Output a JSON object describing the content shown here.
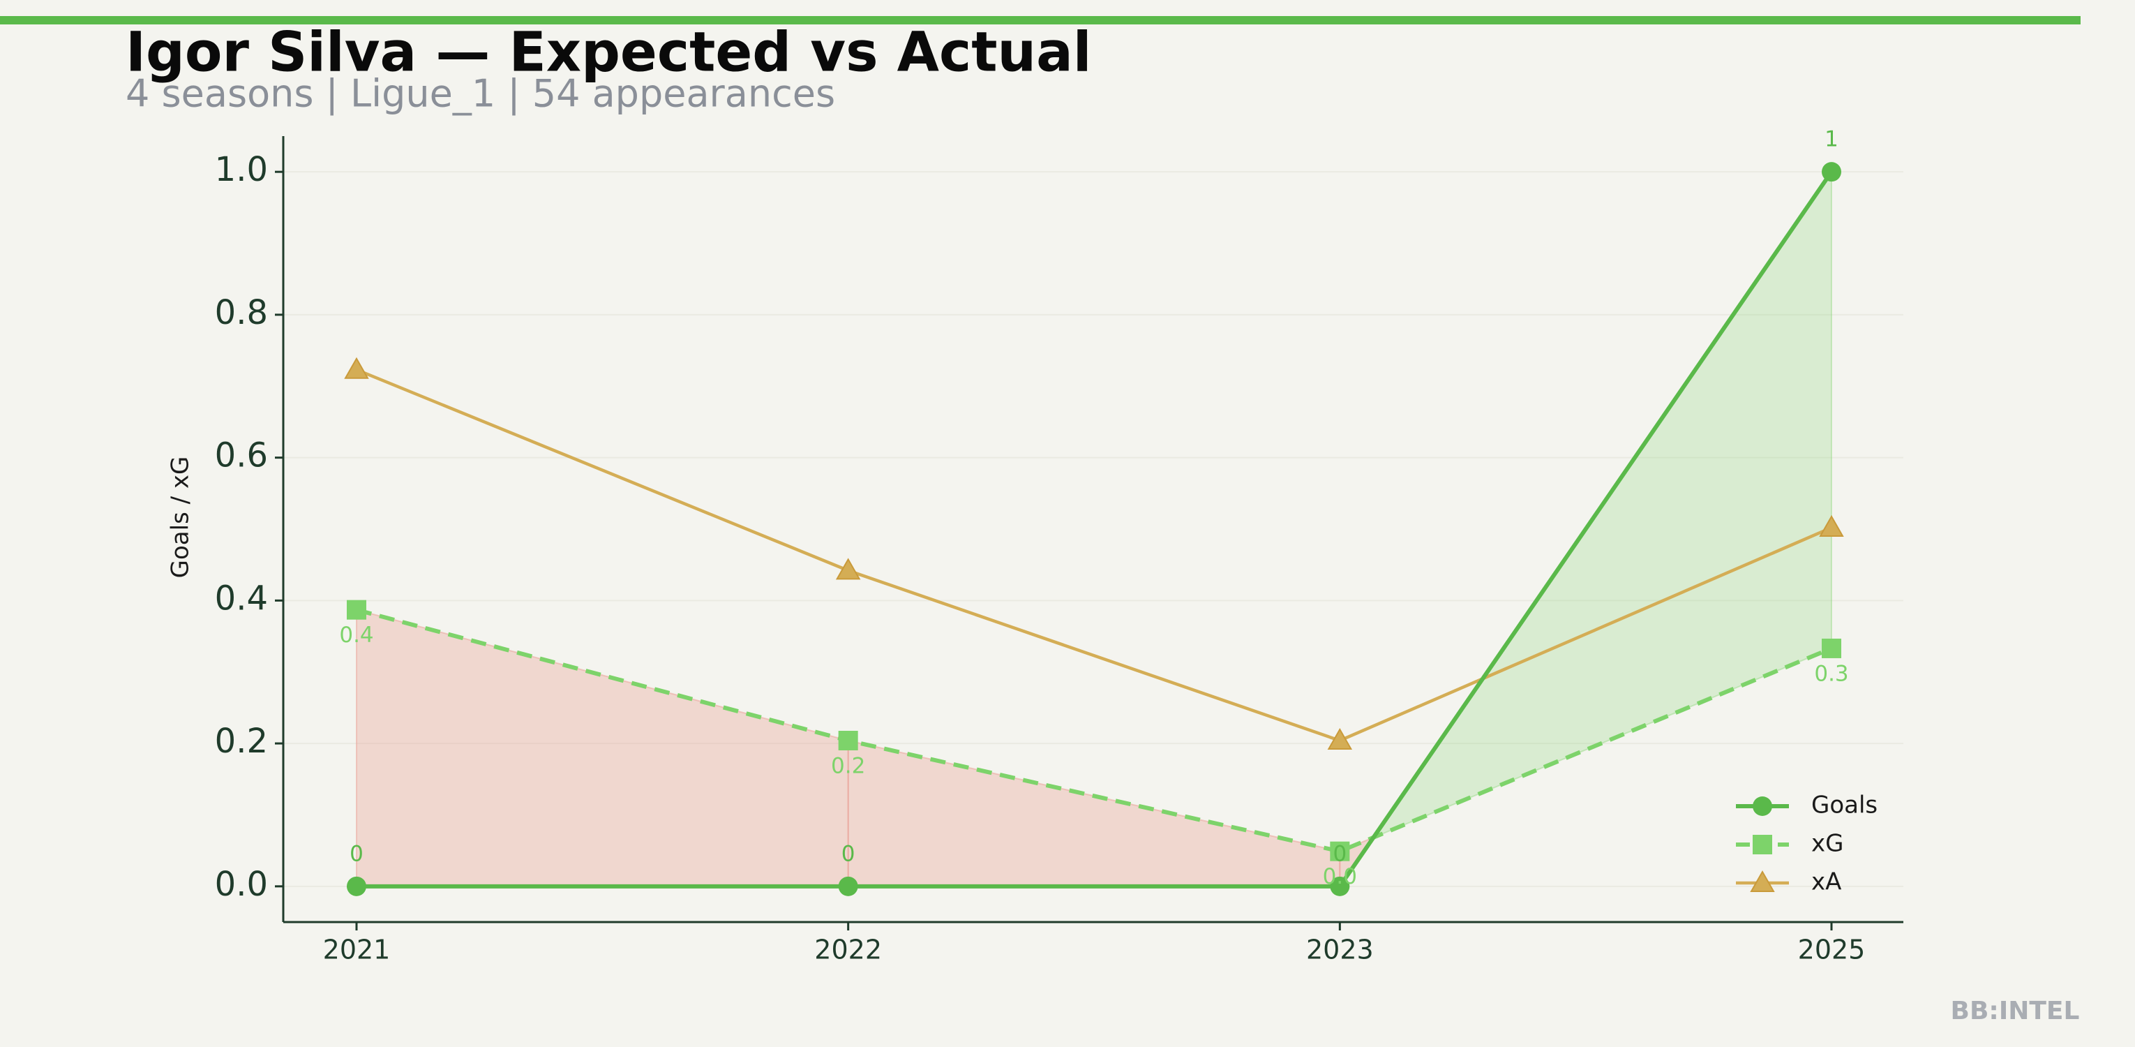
{
  "chart_data": {
    "type": "line",
    "title": "Igor Silva — Expected vs Actual",
    "subtitle": "4 seasons | Ligue_1 | 54 appearances",
    "y_label": "Goals / xG",
    "watermark": "BB:INTEL",
    "categories": [
      "2021",
      "2022",
      "2023",
      "2025"
    ],
    "series": [
      {
        "name": "Goals",
        "color": "#5ab94a",
        "values": [
          0,
          0,
          0,
          1
        ]
      },
      {
        "name": "xG",
        "color": "#7dd36a",
        "values": [
          0.387,
          0.204,
          0.049,
          0.333
        ],
        "value_labels": [
          "0.4",
          "0.2",
          "0.0",
          "0.3"
        ]
      },
      {
        "name": "xA",
        "color": "#d4ad55",
        "values": [
          0.723,
          0.442,
          0.204,
          0.502
        ]
      }
    ],
    "ylim": [
      -0.05,
      1.05
    ],
    "yticks": [
      {
        "value": 0,
        "label": "0.0"
      },
      0.2,
      0.4,
      0.6,
      0.8,
      {
        "value": 1,
        "label": "1.0"
      }
    ],
    "grid": true,
    "legend": "lower right"
  }
}
